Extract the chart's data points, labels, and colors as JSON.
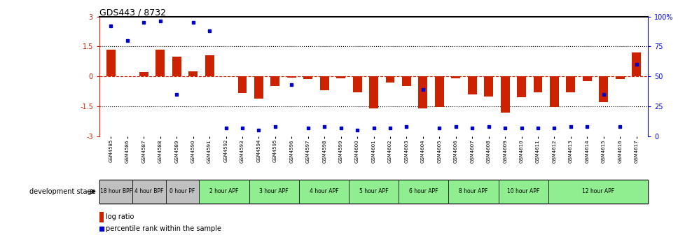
{
  "title": "GDS443 / 8732",
  "samples": [
    "GSM4585",
    "GSM4586",
    "GSM4587",
    "GSM4588",
    "GSM4589",
    "GSM4590",
    "GSM4591",
    "GSM4592",
    "GSM4593",
    "GSM4594",
    "GSM4595",
    "GSM4596",
    "GSM4597",
    "GSM4598",
    "GSM4599",
    "GSM4600",
    "GSM4601",
    "GSM4602",
    "GSM4603",
    "GSM4604",
    "GSM4605",
    "GSM4606",
    "GSM4607",
    "GSM4608",
    "GSM4609",
    "GSM4610",
    "GSM4611",
    "GSM4612",
    "GSM4613",
    "GSM4614",
    "GSM4615",
    "GSM4616",
    "GSM4617"
  ],
  "log_ratio": [
    1.35,
    0.0,
    0.2,
    1.35,
    1.0,
    0.25,
    1.05,
    0.0,
    -0.85,
    -1.1,
    -0.5,
    -0.05,
    -0.15,
    -0.7,
    -0.1,
    -0.8,
    -1.6,
    -0.3,
    -0.5,
    -1.6,
    -1.55,
    -0.1,
    -0.9,
    -1.0,
    -1.8,
    -1.05,
    -0.8,
    -1.55,
    -0.8,
    -0.25,
    -1.3,
    -0.15,
    1.2
  ],
  "percentile": [
    92,
    80,
    95,
    96,
    35,
    95,
    88,
    7,
    7,
    5,
    8,
    43,
    7,
    8,
    7,
    5,
    7,
    7,
    8,
    39,
    7,
    8,
    7,
    8,
    7,
    7,
    7,
    7,
    8,
    8,
    35,
    8,
    60
  ],
  "stages": [
    {
      "label": "18 hour BPF",
      "start": 0,
      "end": 2,
      "color": "#c0c0c0"
    },
    {
      "label": "4 hour BPF",
      "start": 2,
      "end": 4,
      "color": "#c0c0c0"
    },
    {
      "label": "0 hour PF",
      "start": 4,
      "end": 6,
      "color": "#c0c0c0"
    },
    {
      "label": "2 hour APF",
      "start": 6,
      "end": 9,
      "color": "#90ee90"
    },
    {
      "label": "3 hour APF",
      "start": 9,
      "end": 12,
      "color": "#90ee90"
    },
    {
      "label": "4 hour APF",
      "start": 12,
      "end": 15,
      "color": "#90ee90"
    },
    {
      "label": "5 hour APF",
      "start": 15,
      "end": 18,
      "color": "#90ee90"
    },
    {
      "label": "6 hour APF",
      "start": 18,
      "end": 21,
      "color": "#90ee90"
    },
    {
      "label": "8 hour APF",
      "start": 21,
      "end": 24,
      "color": "#90ee90"
    },
    {
      "label": "10 hour APF",
      "start": 24,
      "end": 27,
      "color": "#90ee90"
    },
    {
      "label": "12 hour APF",
      "start": 27,
      "end": 33,
      "color": "#90ee90"
    }
  ],
  "ylim": [
    -3,
    3
  ],
  "bar_color": "#cc2200",
  "dot_color": "#0000cc",
  "hline_color": "#cc2200",
  "yticks_left": [
    -3,
    -1.5,
    0,
    1.5,
    3
  ],
  "ytick_labels_left": [
    "-3",
    "-1.5",
    "0",
    "1.5",
    "3"
  ],
  "yticks_right": [
    0,
    25,
    50,
    75,
    100
  ],
  "ytick_labels_right": [
    "0",
    "25",
    "50",
    "75",
    "100%"
  ],
  "dev_stage_label": "development stage",
  "legend_bar_label": "log ratio",
  "legend_dot_label": "percentile rank within the sample"
}
